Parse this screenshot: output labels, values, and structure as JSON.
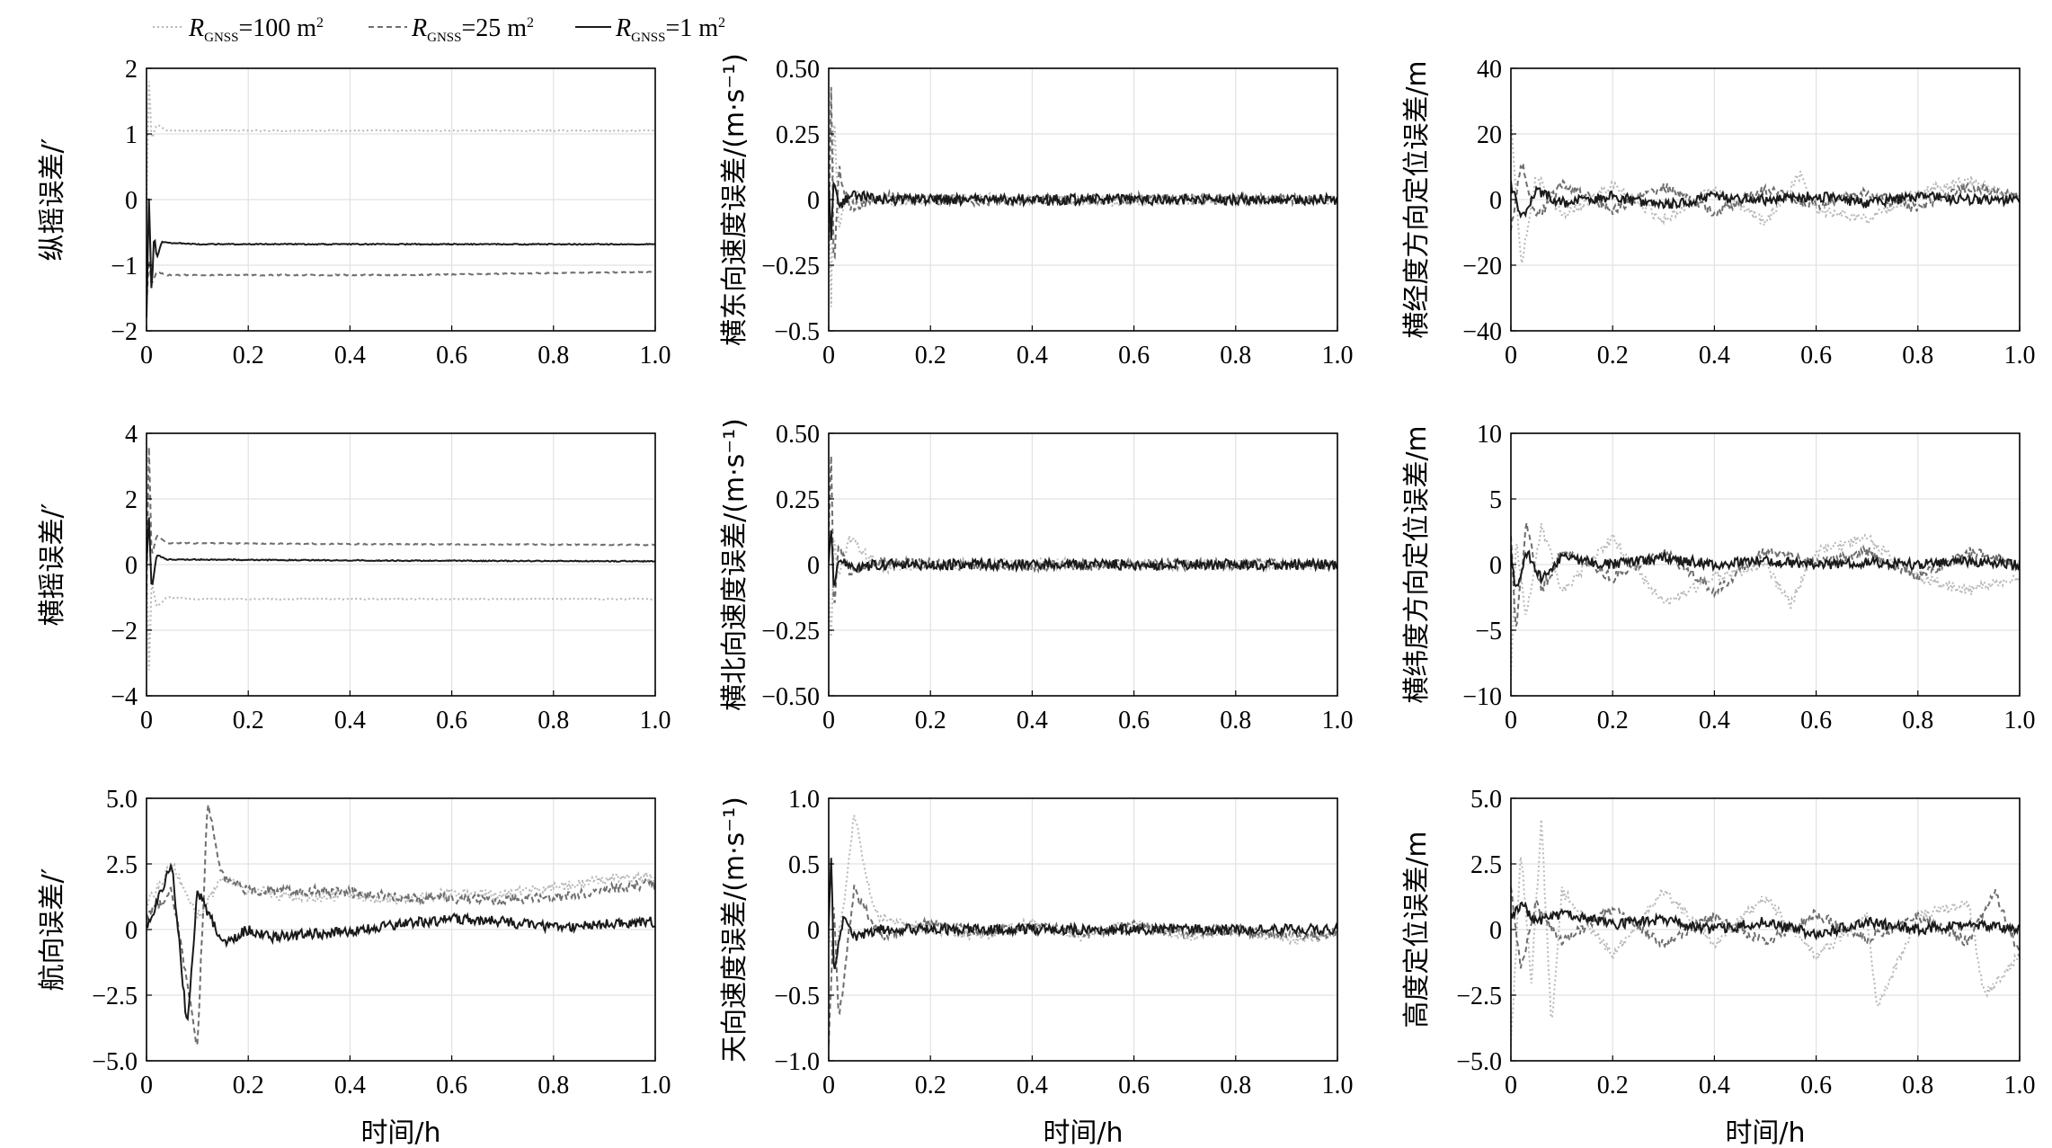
{
  "figure": {
    "x_label": "时间/h"
  },
  "legend": {
    "entries": [
      {
        "symbol": "R",
        "sub": "GNSS",
        "suffix": "=100 m",
        "sup": "2",
        "style": "dotted",
        "color": "#b8b8b8"
      },
      {
        "symbol": "R",
        "sub": "GNSS",
        "suffix": "=25 m",
        "sup": "2",
        "style": "dashed",
        "color": "#6e6e6e"
      },
      {
        "symbol": "R",
        "sub": "GNSS",
        "suffix": "=1 m",
        "sup": "2",
        "style": "solid",
        "color": "#1a1a1a"
      }
    ]
  },
  "chart_data": [
    {
      "type": "line",
      "ylabel": "纵摇误差/′",
      "xlabel": "",
      "xlim": [
        0,
        1.0
      ],
      "ylim": [
        -2,
        2
      ],
      "xticks": [
        "0",
        "0.2",
        "0.4",
        "0.6",
        "0.8",
        "1.0"
      ],
      "yticks": [
        "2",
        "1",
        "0",
        "−1",
        "−2"
      ],
      "ytick_values": [
        2,
        1,
        0,
        -1,
        -2
      ],
      "series": [
        {
          "name": "RGNSS=100 m²",
          "x": [
            0.0,
            0.005,
            0.01,
            0.02,
            0.04,
            0.1,
            0.5,
            1.0
          ],
          "y": [
            -0.2,
            1.9,
            0.9,
            1.15,
            1.05,
            1.05,
            1.05,
            1.05
          ]
        },
        {
          "name": "RGNSS=25 m²",
          "x": [
            0.0,
            0.005,
            0.01,
            0.02,
            0.04,
            0.1,
            0.5,
            1.0
          ],
          "y": [
            -1.6,
            -0.9,
            -1.3,
            -1.1,
            -1.15,
            -1.15,
            -1.15,
            -1.1
          ]
        },
        {
          "name": "RGNSS=1 m²",
          "x": [
            0.0,
            0.005,
            0.01,
            0.015,
            0.02,
            0.03,
            0.1,
            0.5,
            1.0
          ],
          "y": [
            -1.8,
            0.1,
            -1.5,
            -0.5,
            -0.9,
            -0.65,
            -0.68,
            -0.68,
            -0.68
          ]
        }
      ]
    },
    {
      "type": "line",
      "ylabel": "横东向速度误差/(m·s⁻¹)",
      "xlabel": "",
      "xlim": [
        0,
        1.0
      ],
      "ylim": [
        -0.5,
        0.5
      ],
      "xticks": [
        "0",
        "0.2",
        "0.4",
        "0.6",
        "0.8",
        "1.0"
      ],
      "yticks": [
        "0.50",
        "0.25",
        "0",
        "−0.25",
        "−0.5"
      ],
      "ytick_values": [
        0.5,
        0.25,
        0,
        -0.25,
        -0.5
      ],
      "series": [
        {
          "name": "RGNSS=100 m²",
          "x": [
            0.0,
            0.005,
            0.01,
            0.02,
            0.04,
            0.1,
            0.3,
            0.6,
            1.0
          ],
          "y": [
            0.1,
            -0.45,
            0.35,
            -0.1,
            0.03,
            -0.01,
            0.005,
            -0.005,
            0.0
          ]
        },
        {
          "name": "RGNSS=25 m²",
          "x": [
            0.0,
            0.005,
            0.01,
            0.02,
            0.04,
            0.1,
            0.3,
            0.6,
            1.0
          ],
          "y": [
            -0.2,
            0.48,
            -0.3,
            0.12,
            -0.03,
            0.01,
            -0.005,
            0.005,
            0.0
          ]
        },
        {
          "name": "RGNSS=1 m²",
          "x": [
            0.0,
            0.005,
            0.01,
            0.02,
            0.04,
            0.1,
            0.3,
            0.6,
            1.0
          ],
          "y": [
            0.05,
            -0.15,
            0.1,
            -0.04,
            0.02,
            0.0,
            0.0,
            0.0,
            0.0
          ]
        }
      ]
    },
    {
      "type": "line",
      "ylabel": "横经度方向定位误差/m",
      "xlabel": "",
      "xlim": [
        0,
        1.0
      ],
      "ylim": [
        -40,
        40
      ],
      "xticks": [
        "0",
        "0.2",
        "0.4",
        "0.6",
        "0.8",
        "1.0"
      ],
      "yticks": [
        "40",
        "20",
        "0",
        "−20",
        "−40"
      ],
      "ytick_values": [
        40,
        20,
        0,
        -20,
        -40
      ],
      "series": [
        {
          "name": "RGNSS=100 m²",
          "x": [
            0.0,
            0.02,
            0.05,
            0.1,
            0.2,
            0.3,
            0.4,
            0.5,
            0.57,
            0.6,
            0.7,
            0.8,
            0.9,
            1.0
          ],
          "y": [
            25,
            -20,
            8,
            -5,
            4,
            -6,
            3,
            -7,
            8,
            -3,
            -6,
            2,
            6,
            0
          ]
        },
        {
          "name": "RGNSS=25 m²",
          "x": [
            0.0,
            0.02,
            0.05,
            0.1,
            0.2,
            0.3,
            0.4,
            0.5,
            0.6,
            0.7,
            0.8,
            0.9,
            1.0
          ],
          "y": [
            -10,
            12,
            -6,
            5,
            -3,
            4,
            -4,
            3,
            -2,
            2,
            -3,
            4,
            1
          ]
        },
        {
          "name": "RGNSS=1 m²",
          "x": [
            0.0,
            0.02,
            0.05,
            0.1,
            0.2,
            0.3,
            0.4,
            0.5,
            0.6,
            0.7,
            0.8,
            0.9,
            1.0
          ],
          "y": [
            5,
            -6,
            3,
            -1,
            1,
            -2,
            1,
            0,
            1,
            -1,
            1,
            0,
            0
          ]
        }
      ]
    },
    {
      "type": "line",
      "ylabel": "横摇误差/′",
      "xlabel": "",
      "xlim": [
        0,
        1.0
      ],
      "ylim": [
        -4,
        4
      ],
      "xticks": [
        "0",
        "0.2",
        "0.4",
        "0.6",
        "0.8",
        "1.0"
      ],
      "yticks": [
        "4",
        "2",
        "0",
        "−2",
        "−4"
      ],
      "ytick_values": [
        4,
        2,
        0,
        -2,
        -4
      ],
      "series": [
        {
          "name": "RGNSS=100 m²",
          "x": [
            0.0,
            0.005,
            0.01,
            0.02,
            0.04,
            0.1,
            0.5,
            1.0
          ],
          "y": [
            0.5,
            -3.4,
            -0.5,
            -1.3,
            -1.0,
            -1.05,
            -1.05,
            -1.05
          ]
        },
        {
          "name": "RGNSS=25 m²",
          "x": [
            0.0,
            0.005,
            0.01,
            0.02,
            0.04,
            0.1,
            0.5,
            1.0
          ],
          "y": [
            -1.0,
            3.8,
            0.2,
            0.9,
            0.65,
            0.65,
            0.62,
            0.6
          ]
        },
        {
          "name": "RGNSS=1 m²",
          "x": [
            0.0,
            0.005,
            0.01,
            0.02,
            0.04,
            0.1,
            0.5,
            1.0
          ],
          "y": [
            0.0,
            1.5,
            -0.8,
            0.3,
            0.15,
            0.15,
            0.12,
            0.1
          ]
        }
      ]
    },
    {
      "type": "line",
      "ylabel": "横北向速度误差/(m·s⁻¹)",
      "xlabel": "",
      "xlim": [
        0,
        1.0
      ],
      "ylim": [
        -0.5,
        0.5
      ],
      "xticks": [
        "0",
        "0.2",
        "0.4",
        "0.6",
        "0.8",
        "1.0"
      ],
      "yticks": [
        "0.50",
        "0.25",
        "0",
        "−0.25",
        "−0.50"
      ],
      "ytick_values": [
        0.5,
        0.25,
        0,
        -0.25,
        -0.5
      ],
      "series": [
        {
          "name": "RGNSS=100 m²",
          "x": [
            0.0,
            0.005,
            0.01,
            0.02,
            0.04,
            0.1,
            0.3,
            0.6,
            1.0
          ],
          "y": [
            -0.1,
            -0.3,
            0.1,
            -0.05,
            0.1,
            -0.01,
            0.005,
            0.0,
            0.0
          ]
        },
        {
          "name": "RGNSS=25 m²",
          "x": [
            0.0,
            0.005,
            0.01,
            0.02,
            0.04,
            0.1,
            0.3,
            0.6,
            1.0
          ],
          "y": [
            0.1,
            0.45,
            -0.2,
            0.08,
            -0.03,
            0.01,
            -0.005,
            0.0,
            0.0
          ]
        },
        {
          "name": "RGNSS=1 m²",
          "x": [
            0.0,
            0.005,
            0.01,
            0.02,
            0.04,
            0.1,
            0.3,
            0.6,
            1.0
          ],
          "y": [
            0.0,
            0.15,
            -0.08,
            0.03,
            -0.01,
            0.0,
            0.0,
            0.0,
            0.0
          ]
        }
      ]
    },
    {
      "type": "line",
      "ylabel": "横纬度方向定位误差/m",
      "xlabel": "",
      "xlim": [
        0,
        1.0
      ],
      "ylim": [
        -10,
        10
      ],
      "xticks": [
        "0",
        "0.2",
        "0.4",
        "0.6",
        "0.8",
        "1.0"
      ],
      "yticks": [
        "10",
        "5",
        "0",
        "−5",
        "−10"
      ],
      "ytick_values": [
        10,
        5,
        0,
        -5,
        -10
      ],
      "series": [
        {
          "name": "RGNSS=100 m²",
          "x": [
            0.0,
            0.01,
            0.03,
            0.06,
            0.1,
            0.2,
            0.3,
            0.4,
            0.5,
            0.55,
            0.6,
            0.7,
            0.8,
            0.9,
            1.0
          ],
          "y": [
            -9,
            2,
            -4,
            3,
            -2,
            2,
            -3,
            -1,
            0,
            -3,
            1,
            2,
            -1,
            -2,
            -1
          ]
        },
        {
          "name": "RGNSS=25 m²",
          "x": [
            0.0,
            0.01,
            0.03,
            0.06,
            0.1,
            0.2,
            0.3,
            0.4,
            0.5,
            0.6,
            0.7,
            0.8,
            0.9,
            1.0
          ],
          "y": [
            2,
            -5,
            3,
            -2,
            1,
            -1,
            1,
            -2,
            1,
            0,
            1,
            -1,
            1,
            0
          ]
        },
        {
          "name": "RGNSS=1 m²",
          "x": [
            0.0,
            0.01,
            0.03,
            0.06,
            0.1,
            0.2,
            0.3,
            0.4,
            0.5,
            0.6,
            0.7,
            0.8,
            0.9,
            1.0
          ],
          "y": [
            1,
            -2,
            1,
            -1,
            0.5,
            0,
            0.5,
            0,
            0.3,
            0,
            0.2,
            0,
            0.2,
            0
          ]
        }
      ]
    },
    {
      "type": "line",
      "ylabel": "航向误差/′",
      "xlabel": "时间/h",
      "xlim": [
        0,
        1.0
      ],
      "ylim": [
        -5,
        5
      ],
      "xticks": [
        "0",
        "0.2",
        "0.4",
        "0.6",
        "0.8",
        "1.0"
      ],
      "yticks": [
        "5.0",
        "2.5",
        "0",
        "−2.5",
        "−5.0"
      ],
      "ytick_values": [
        5,
        2.5,
        0,
        -2.5,
        -5
      ],
      "series": [
        {
          "name": "RGNSS=100 m²",
          "x": [
            0.0,
            0.05,
            0.1,
            0.15,
            0.2,
            0.3,
            0.4,
            0.5,
            0.6,
            0.7,
            0.8,
            0.9,
            1.0
          ],
          "y": [
            1.0,
            2.5,
            0.5,
            2.0,
            1.5,
            1.2,
            1.3,
            1.1,
            1.4,
            1.3,
            1.6,
            1.9,
            2.0
          ]
        },
        {
          "name": "RGNSS=25 m²",
          "x": [
            0.0,
            0.05,
            0.1,
            0.12,
            0.15,
            0.2,
            0.3,
            0.4,
            0.5,
            0.6,
            0.7,
            0.8,
            0.9,
            1.0
          ],
          "y": [
            0.5,
            1.5,
            -4.5,
            4.8,
            2.0,
            1.5,
            1.5,
            1.4,
            1.2,
            1.2,
            1.1,
            1.2,
            1.5,
            1.8
          ]
        },
        {
          "name": "RGNSS=1 m²",
          "x": [
            0.0,
            0.05,
            0.08,
            0.1,
            0.15,
            0.2,
            0.25,
            0.3,
            0.4,
            0.5,
            0.6,
            0.7,
            0.8,
            0.9,
            1.0
          ],
          "y": [
            0.0,
            2.5,
            -3.8,
            1.5,
            -0.5,
            0.0,
            -0.3,
            -0.2,
            -0.1,
            0.2,
            0.4,
            0.3,
            0.1,
            0.2,
            0.3
          ]
        }
      ]
    },
    {
      "type": "line",
      "ylabel": "天向速度误差/(m·s⁻¹)",
      "xlabel": "时间/h",
      "xlim": [
        0,
        1.0
      ],
      "ylim": [
        -1.0,
        1.0
      ],
      "xticks": [
        "0",
        "0.2",
        "0.4",
        "0.6",
        "0.8",
        "1.0"
      ],
      "yticks": [
        "1.0",
        "0.5",
        "0",
        "−0.5",
        "−1.0"
      ],
      "ytick_values": [
        1,
        0.5,
        0,
        -0.5,
        -1
      ],
      "series": [
        {
          "name": "RGNSS=100 m²",
          "x": [
            0.0,
            0.01,
            0.03,
            0.05,
            0.08,
            0.1,
            0.2,
            0.3,
            0.4,
            0.5,
            0.6,
            0.7,
            0.8,
            0.9,
            1.0
          ],
          "y": [
            0.0,
            -0.3,
            0.2,
            0.9,
            0.3,
            0.1,
            0.0,
            -0.05,
            0.05,
            -0.05,
            0.05,
            -0.05,
            0.0,
            -0.08,
            -0.05
          ]
        },
        {
          "name": "RGNSS=25 m²",
          "x": [
            0.0,
            0.01,
            0.02,
            0.05,
            0.1,
            0.2,
            0.3,
            0.4,
            0.5,
            0.6,
            0.7,
            0.8,
            0.9,
            1.0
          ],
          "y": [
            -0.9,
            0.2,
            -0.7,
            0.3,
            -0.05,
            0.05,
            -0.03,
            0.02,
            -0.02,
            0.03,
            -0.02,
            0.0,
            -0.05,
            -0.03
          ]
        },
        {
          "name": "RGNSS=1 m²",
          "x": [
            0.0,
            0.005,
            0.01,
            0.03,
            0.05,
            0.1,
            0.2,
            0.3,
            0.4,
            0.5,
            0.6,
            0.7,
            0.8,
            0.9,
            1.0
          ],
          "y": [
            0.0,
            0.6,
            -0.3,
            0.1,
            -0.05,
            0.0,
            0.0,
            0.0,
            0.0,
            0.0,
            0.0,
            0.0,
            0.0,
            0.0,
            0.0
          ]
        }
      ]
    },
    {
      "type": "line",
      "ylabel": "高度定位误差/m",
      "xlabel": "时间/h",
      "xlim": [
        0,
        1.0
      ],
      "ylim": [
        -5,
        5
      ],
      "xticks": [
        "0",
        "0.2",
        "0.4",
        "0.6",
        "0.8",
        "1.0"
      ],
      "yticks": [
        "5.0",
        "2.5",
        "0",
        "−2.5",
        "−5.0"
      ],
      "ytick_values": [
        5,
        2.5,
        0,
        -2.5,
        -5
      ],
      "series": [
        {
          "name": "RGNSS=100 m²",
          "x": [
            0.0,
            0.02,
            0.04,
            0.06,
            0.08,
            0.1,
            0.2,
            0.3,
            0.4,
            0.5,
            0.6,
            0.7,
            0.72,
            0.8,
            0.9,
            0.93,
            1.0
          ],
          "y": [
            -4.5,
            3.0,
            -2.0,
            4.2,
            -3.8,
            1.5,
            -1.0,
            1.5,
            -0.5,
            1.2,
            -1.0,
            0.5,
            -3.0,
            0.5,
            1.0,
            -2.5,
            -1.0
          ]
        },
        {
          "name": "RGNSS=25 m²",
          "x": [
            0.0,
            0.02,
            0.05,
            0.1,
            0.2,
            0.3,
            0.4,
            0.5,
            0.6,
            0.7,
            0.8,
            0.9,
            0.95,
            1.0
          ],
          "y": [
            1.5,
            -1.5,
            1.0,
            -0.5,
            0.8,
            -0.6,
            0.5,
            -0.5,
            0.6,
            -0.4,
            0.5,
            -0.5,
            1.5,
            -1.0
          ]
        },
        {
          "name": "RGNSS=1 m²",
          "x": [
            0.0,
            0.02,
            0.05,
            0.1,
            0.2,
            0.3,
            0.4,
            0.5,
            0.6,
            0.7,
            0.8,
            0.9,
            1.0
          ],
          "y": [
            0.5,
            1.0,
            0.3,
            0.6,
            0.2,
            0.4,
            0.0,
            0.3,
            -0.2,
            0.3,
            0.0,
            0.2,
            0.0
          ]
        }
      ]
    }
  ]
}
